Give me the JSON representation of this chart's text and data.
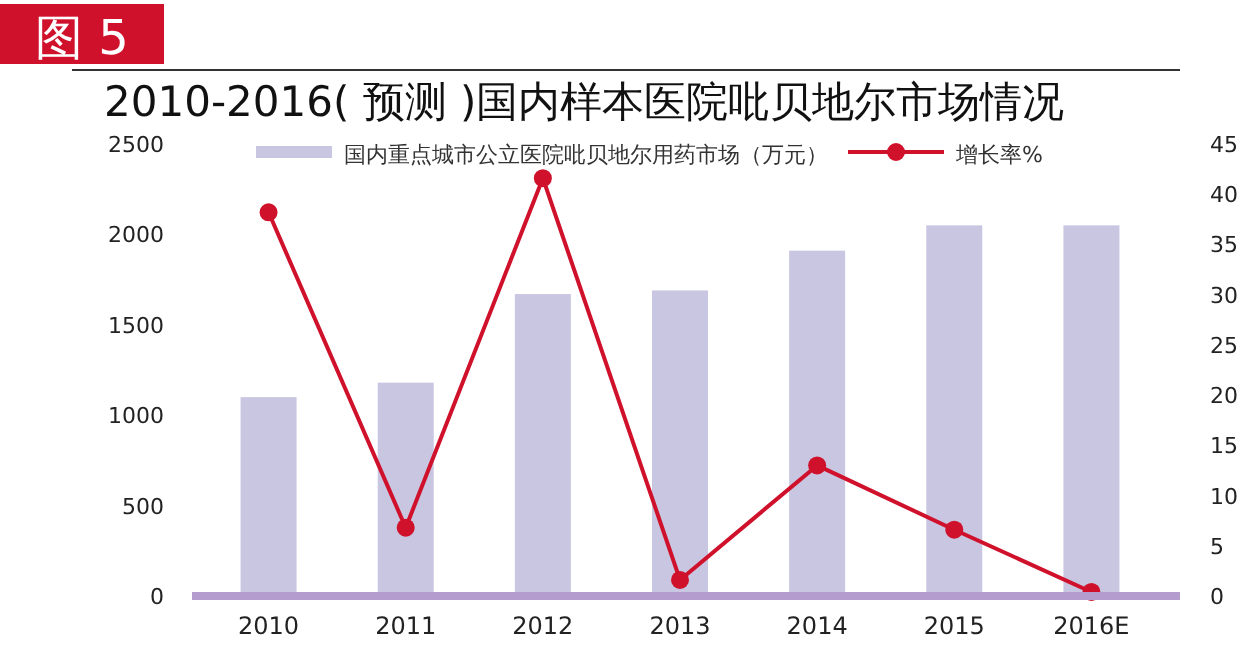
{
  "chart_data": {
    "type": "bar",
    "title": "2010-2016( 预测 )国内样本医院吡贝地尔市场情况",
    "annotations": [
      "图 5"
    ],
    "categories": [
      "2010",
      "2011",
      "2012",
      "2013",
      "2014",
      "2015",
      "2016E"
    ],
    "series": [
      {
        "name": "国内重点城市公立医院吡贝地尔用药市场（万元）",
        "color": "#c9c6e2",
        "values": [
          1100,
          1180,
          1670,
          1690,
          1910,
          2050,
          2050
        ]
      },
      {
        "name": "增长率%",
        "type": "line",
        "axis": "y2",
        "color": "#d0112b",
        "marker": "circle",
        "line_style": "solid",
        "values": [
          38.2,
          6.8,
          41.6,
          1.6,
          13,
          6.6,
          0.4
        ]
      }
    ],
    "ylim": [
      0,
      2500
    ],
    "yticks": [
      0,
      500,
      1000,
      1500,
      2000,
      2500
    ],
    "y2lim": [
      0,
      45
    ],
    "y2ticks": [
      0,
      5,
      10,
      15,
      20,
      25,
      30,
      35,
      40,
      45
    ],
    "legend": "top",
    "grid": false
  }
}
